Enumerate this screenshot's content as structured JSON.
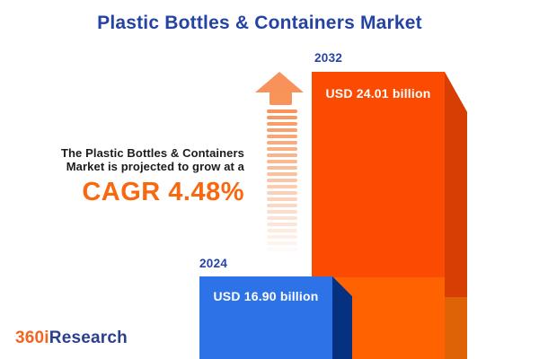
{
  "title": "Plastic Bottles & Containers Market",
  "annotation": {
    "line1": "The Plastic Bottles & Containers",
    "line2": "Market is projected to grow at a",
    "cagr": "CAGR 4.48%"
  },
  "chart_data": {
    "type": "bar",
    "title": "Plastic Bottles & Containers Market",
    "categories": [
      "2024",
      "2032"
    ],
    "values": [
      16.9,
      24.01
    ],
    "value_unit": "USD billion",
    "bar_labels": [
      "USD 16.90 billion",
      "USD 24.01 billion"
    ],
    "cagr_percent": 4.48,
    "legend_position": "none",
    "grid": false,
    "bar_colors": {
      "bar_2024_face": "#2E72E8",
      "bar_2024_side": "#053180",
      "bar_2032_face_top": "#FB4A01",
      "bar_2032_face_bottom": "#FF6301",
      "bar_2032_side_top": "#D63E04",
      "bar_2032_side_bottom": "#DE6307"
    }
  },
  "colors": {
    "title_blue": "#2543A4",
    "cagr_orange": "#F8680F",
    "arrow_orange": "#F8935A",
    "body_text": "#1B1B1B"
  },
  "icons": {
    "growth_arrow": "up-arrow-icon"
  },
  "logo": {
    "part1": "360i",
    "part2": "Research"
  }
}
